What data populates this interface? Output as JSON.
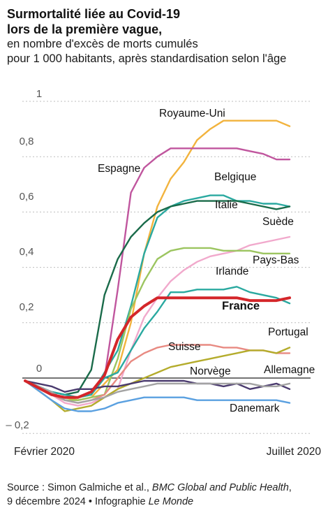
{
  "header": {
    "title_line1": "Surmortalité liée au Covid-19",
    "title_line2": "lors de la première vague,",
    "subtitle_line1": "en nombre d'excès de morts cumulés",
    "subtitle_line2": "pour 1 000 habitants, après standardisation selon l'âge"
  },
  "footer": {
    "source_prefix": "Source : Simon Galmiche et al., ",
    "source_journal": "BMC Global and Public Health",
    "source_mid": ",",
    "source_date": "9 décembre 2024 • Infographie ",
    "source_paper": "Le Monde"
  },
  "chart_data": {
    "type": "line",
    "title": "Surmortalité liée au Covid-19 lors de la première vague,",
    "subtitle": "en nombre d'excès de morts cumulés pour 1 000 habitants, après standardisation selon l'âge",
    "x_start_label": "Février 2020",
    "x_end_label": "Juillet 2020",
    "x_range": [
      0,
      20
    ],
    "ylim": [
      -0.22,
      1.0
    ],
    "y_ticks": [
      {
        "value": 1.0,
        "label": "1"
      },
      {
        "value": 0.8,
        "label": "0,8"
      },
      {
        "value": 0.6,
        "label": "0,6"
      },
      {
        "value": 0.4,
        "label": "0,4"
      },
      {
        "value": 0.2,
        "label": "0,2"
      },
      {
        "value": 0.0,
        "label": "0"
      },
      {
        "value": -0.2,
        "label": "– 0,2"
      }
    ],
    "grid": true,
    "series": [
      {
        "name": "Royaume-Uni",
        "color": "#f2b33d",
        "x": [
          0,
          2,
          4,
          5,
          7,
          8,
          9,
          10,
          11,
          12,
          13,
          14,
          15,
          16,
          17,
          18,
          19,
          20
        ],
        "values": [
          -0.01,
          -0.06,
          -0.08,
          -0.07,
          0.03,
          0.2,
          0.45,
          0.62,
          0.72,
          0.78,
          0.86,
          0.9,
          0.93,
          0.93,
          0.93,
          0.93,
          0.93,
          0.91
        ]
      },
      {
        "name": "Espagne",
        "color": "#c0569e",
        "x": [
          0,
          2,
          3,
          4,
          5,
          6,
          7,
          8,
          9,
          10,
          11,
          12,
          13,
          14,
          15,
          16,
          17,
          18,
          19,
          20
        ],
        "values": [
          -0.01,
          -0.06,
          -0.07,
          -0.07,
          -0.05,
          0.0,
          0.32,
          0.67,
          0.76,
          0.8,
          0.83,
          0.83,
          0.83,
          0.83,
          0.83,
          0.83,
          0.82,
          0.81,
          0.79,
          0.79
        ]
      },
      {
        "name": "Belgique",
        "color": "#2aa9a0",
        "x": [
          0,
          2,
          3,
          4,
          5,
          6,
          7,
          8,
          9,
          10,
          11,
          12,
          13,
          14,
          15,
          16,
          17,
          18,
          19,
          20
        ],
        "values": [
          -0.01,
          -0.05,
          -0.06,
          -0.07,
          -0.06,
          0.02,
          0.1,
          0.26,
          0.45,
          0.58,
          0.62,
          0.64,
          0.65,
          0.66,
          0.66,
          0.64,
          0.64,
          0.63,
          0.63,
          0.62
        ]
      },
      {
        "name": "Italie",
        "color": "#1a6b4a",
        "x": [
          0,
          2,
          3,
          4,
          5,
          6,
          7,
          8,
          9,
          10,
          11,
          12,
          13,
          14,
          15,
          16,
          17,
          18,
          19,
          20
        ],
        "values": [
          -0.01,
          -0.05,
          -0.06,
          -0.05,
          0.03,
          0.3,
          0.43,
          0.51,
          0.56,
          0.6,
          0.62,
          0.63,
          0.64,
          0.64,
          0.64,
          0.64,
          0.63,
          0.62,
          0.61,
          0.62
        ]
      },
      {
        "name": "Suède",
        "color": "#f1a9cc",
        "x": [
          0,
          2,
          3,
          4,
          5,
          6,
          7,
          8,
          9,
          10,
          11,
          12,
          13,
          14,
          15,
          16,
          17,
          18,
          19,
          20
        ],
        "values": [
          -0.01,
          -0.06,
          -0.09,
          -0.1,
          -0.09,
          -0.07,
          -0.04,
          0.1,
          0.22,
          0.29,
          0.35,
          0.39,
          0.42,
          0.44,
          0.45,
          0.46,
          0.48,
          0.49,
          0.5,
          0.51
        ]
      },
      {
        "name": "Pays-Bas",
        "color": "#9cc560",
        "x": [
          0,
          2,
          3,
          4,
          5,
          6,
          7,
          8,
          9,
          10,
          11,
          12,
          13,
          14,
          15,
          16,
          17,
          18,
          19,
          20
        ],
        "values": [
          -0.01,
          -0.06,
          -0.08,
          -0.08,
          -0.07,
          -0.06,
          0.07,
          0.25,
          0.35,
          0.43,
          0.46,
          0.47,
          0.47,
          0.47,
          0.46,
          0.46,
          0.46,
          0.45,
          0.45,
          0.45
        ]
      },
      {
        "name": "Irlande",
        "color": "#2aa9a0",
        "x": [
          0,
          2,
          4,
          5,
          6,
          7,
          8,
          9,
          10,
          11,
          12,
          13,
          14,
          15,
          16,
          17,
          18,
          19,
          20
        ],
        "values": [
          -0.01,
          -0.05,
          -0.07,
          -0.06,
          0.0,
          0.02,
          0.1,
          0.18,
          0.24,
          0.31,
          0.31,
          0.32,
          0.32,
          0.32,
          0.33,
          0.31,
          0.3,
          0.29,
          0.27
        ]
      },
      {
        "name": "France",
        "color": "#d4262a",
        "x": [
          0,
          2,
          3,
          4,
          5,
          6,
          7,
          8,
          9,
          10,
          11,
          12,
          13,
          14,
          15,
          16,
          17,
          18,
          19,
          20
        ],
        "values": [
          -0.01,
          -0.06,
          -0.07,
          -0.07,
          -0.05,
          0.01,
          0.14,
          0.22,
          0.26,
          0.29,
          0.29,
          0.29,
          0.29,
          0.29,
          0.29,
          0.29,
          0.28,
          0.28,
          0.28,
          0.29
        ]
      },
      {
        "name": "Suisse",
        "color": "#e88a82",
        "x": [
          0,
          2,
          3,
          4,
          5,
          6,
          7,
          8,
          9,
          10,
          11,
          12,
          13,
          14,
          15,
          16,
          17,
          18,
          19,
          20
        ],
        "values": [
          -0.01,
          -0.06,
          -0.08,
          -0.09,
          -0.08,
          -0.06,
          0.0,
          0.06,
          0.09,
          0.11,
          0.12,
          0.12,
          0.12,
          0.12,
          0.11,
          0.11,
          0.1,
          0.1,
          0.09,
          0.09
        ]
      },
      {
        "name": "Portugal",
        "color": "#b4ac2c",
        "x": [
          0,
          2,
          3,
          4,
          5,
          6,
          7,
          8,
          9,
          10,
          11,
          12,
          13,
          14,
          15,
          16,
          17,
          18,
          19,
          20
        ],
        "values": [
          -0.01,
          -0.08,
          -0.12,
          -0.11,
          -0.1,
          -0.07,
          -0.04,
          -0.02,
          0.0,
          0.02,
          0.04,
          0.05,
          0.06,
          0.07,
          0.08,
          0.09,
          0.1,
          0.1,
          0.09,
          0.11
        ]
      },
      {
        "name": "Norvège",
        "color": "#4a3a6e",
        "x": [
          0,
          2,
          3,
          4,
          5,
          6,
          7,
          8,
          9,
          10,
          11,
          12,
          13,
          14,
          15,
          16,
          17,
          18,
          19,
          20
        ],
        "values": [
          -0.01,
          -0.03,
          -0.05,
          -0.04,
          -0.04,
          -0.03,
          -0.03,
          -0.02,
          -0.01,
          -0.01,
          -0.01,
          -0.01,
          -0.02,
          -0.02,
          -0.03,
          -0.02,
          -0.04,
          -0.03,
          -0.02,
          -0.04
        ]
      },
      {
        "name": "Allemagne",
        "color": "#a3a3a3",
        "x": [
          0,
          2,
          3,
          4,
          5,
          6,
          7,
          8,
          9,
          10,
          11,
          12,
          13,
          14,
          15,
          16,
          17,
          18,
          19,
          20
        ],
        "values": [
          -0.01,
          -0.05,
          -0.08,
          -0.09,
          -0.08,
          -0.07,
          -0.05,
          -0.04,
          -0.03,
          -0.02,
          -0.02,
          -0.02,
          -0.02,
          -0.02,
          -0.02,
          -0.02,
          -0.02,
          -0.03,
          -0.03,
          -0.02
        ]
      },
      {
        "name": "Danemark",
        "color": "#5aa0e0",
        "x": [
          0,
          2,
          3,
          4,
          5,
          6,
          7,
          8,
          9,
          10,
          11,
          12,
          13,
          14,
          15,
          16,
          17,
          18,
          19,
          20
        ],
        "values": [
          -0.01,
          -0.08,
          -0.11,
          -0.12,
          -0.12,
          -0.11,
          -0.09,
          -0.08,
          -0.07,
          -0.07,
          -0.07,
          -0.07,
          -0.08,
          -0.08,
          -0.08,
          -0.08,
          -0.08,
          -0.08,
          -0.08,
          -0.09
        ]
      }
    ],
    "labels": [
      {
        "text": "Royaume-Uni",
        "series": "Royaume-Uni",
        "bold": false
      },
      {
        "text": "Espagne",
        "series": "Espagne",
        "bold": false
      },
      {
        "text": "Belgique",
        "series": "Belgique",
        "bold": false
      },
      {
        "text": "Italie",
        "series": "Italie",
        "bold": false
      },
      {
        "text": "Suède",
        "series": "Suède",
        "bold": false
      },
      {
        "text": "Pays-Bas",
        "series": "Pays-Bas",
        "bold": false
      },
      {
        "text": "Irlande",
        "series": "Irlande",
        "bold": false
      },
      {
        "text": "France",
        "series": "France",
        "bold": true
      },
      {
        "text": "Suisse",
        "series": "Suisse",
        "bold": false
      },
      {
        "text": "Portugal",
        "series": "Portugal",
        "bold": false
      },
      {
        "text": "Norvège",
        "series": "Norvège",
        "bold": false
      },
      {
        "text": "Allemagne",
        "series": "Allemagne",
        "bold": false
      },
      {
        "text": "Danemark",
        "series": "Danemark",
        "bold": false
      }
    ]
  }
}
